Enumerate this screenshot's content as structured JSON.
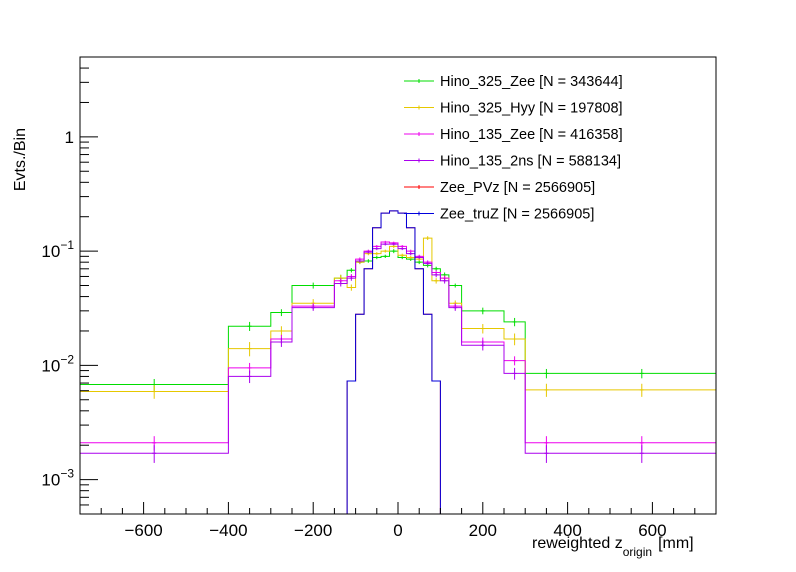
{
  "chart_data": {
    "type": "histogram",
    "title": "",
    "xlabel": "reweighted z",
    "xlabel_sub": "origin",
    "xlabel_unit": "[mm]",
    "ylabel": "Evts./Bin",
    "xlim": [
      -750,
      750
    ],
    "ylim": [
      0.0005,
      5
    ],
    "yscale": "log",
    "grid": false,
    "legend_position": "top-right",
    "x_ticks": [
      -600,
      -400,
      -200,
      0,
      200,
      400,
      600
    ],
    "x_tick_labels": [
      "−600",
      "−400",
      "−200",
      "0",
      "200",
      "400",
      "600"
    ],
    "y_ticks": [
      {
        "value": 0.001,
        "base": "10",
        "exp": "−3"
      },
      {
        "value": 0.01,
        "base": "10",
        "exp": "−2"
      },
      {
        "value": 0.1,
        "base": "10",
        "exp": "−1"
      },
      {
        "value": 1,
        "base": "1",
        "exp": ""
      }
    ],
    "bin_edges": [
      -750,
      -400,
      -300,
      -250,
      -150,
      -120,
      -100,
      -80,
      -60,
      -40,
      -20,
      0,
      20,
      40,
      60,
      80,
      100,
      120,
      150,
      250,
      300,
      400,
      750
    ],
    "series": [
      {
        "name": "Hino_325_Zee [N = 343644]",
        "color": "#00dd00",
        "values": [
          0.0068,
          0.022,
          0.029,
          0.05,
          0.058,
          0.068,
          0.08,
          0.082,
          0.088,
          0.09,
          0.1,
          0.088,
          0.085,
          0.08,
          0.075,
          0.07,
          0.062,
          0.05,
          0.03,
          0.024,
          0.0085,
          0.0085
        ],
        "errors": [
          0.0008,
          0.002,
          0.002,
          0.003,
          0.004,
          0.003,
          0.003,
          0.003,
          0.003,
          0.003,
          0.004,
          0.003,
          0.003,
          0.003,
          0.003,
          0.003,
          0.003,
          0.002,
          0.002,
          0.002,
          0.0008,
          0.0008
        ]
      },
      {
        "name": "Hino_325_Hyy [N = 197808]",
        "color": "#e6c800",
        "values": [
          0.0059,
          0.014,
          0.02,
          0.035,
          0.058,
          0.048,
          0.08,
          0.095,
          0.095,
          0.1,
          0.11,
          0.092,
          0.088,
          0.085,
          0.13,
          0.055,
          0.058,
          0.035,
          0.021,
          0.017,
          0.0061,
          0.0061
        ],
        "errors": [
          0.0008,
          0.002,
          0.002,
          0.003,
          0.004,
          0.003,
          0.003,
          0.003,
          0.003,
          0.003,
          0.004,
          0.003,
          0.003,
          0.003,
          0.005,
          0.003,
          0.003,
          0.002,
          0.002,
          0.002,
          0.0008,
          0.0008
        ]
      },
      {
        "name": "Hino_135_Zee [N = 416358]",
        "color": "#ee00ee",
        "values": [
          0.0021,
          0.0095,
          0.017,
          0.033,
          0.055,
          0.06,
          0.085,
          0.1,
          0.11,
          0.12,
          0.118,
          0.11,
          0.1,
          0.09,
          0.08,
          0.065,
          0.058,
          0.033,
          0.016,
          0.011,
          0.0021,
          0.0021
        ],
        "errors": [
          0.0003,
          0.001,
          0.0015,
          0.002,
          0.003,
          0.003,
          0.003,
          0.003,
          0.003,
          0.003,
          0.003,
          0.003,
          0.003,
          0.003,
          0.003,
          0.003,
          0.003,
          0.002,
          0.0015,
          0.001,
          0.0003,
          0.0003
        ]
      },
      {
        "name": "Hino_135_2ns [N = 588134]",
        "color": "#aa00ee",
        "values": [
          0.0017,
          0.008,
          0.016,
          0.032,
          0.052,
          0.058,
          0.082,
          0.098,
          0.105,
          0.115,
          0.115,
          0.105,
          0.095,
          0.088,
          0.078,
          0.062,
          0.055,
          0.032,
          0.015,
          0.0085,
          0.0017,
          0.0017
        ],
        "errors": [
          0.0003,
          0.001,
          0.0015,
          0.002,
          0.003,
          0.003,
          0.003,
          0.003,
          0.003,
          0.003,
          0.003,
          0.003,
          0.003,
          0.003,
          0.003,
          0.003,
          0.003,
          0.002,
          0.0015,
          0.001,
          0.0003,
          0.0003
        ]
      },
      {
        "name": "Zee_PVz [N = 2566905]",
        "color": "#ff0000",
        "values": [
          0,
          0,
          0,
          0,
          0,
          0.0073,
          0.028,
          0.07,
          0.16,
          0.215,
          0.225,
          0.215,
          0.16,
          0.07,
          0.028,
          0.0073,
          0,
          0,
          0,
          0,
          0,
          0
        ],
        "errors": []
      },
      {
        "name": "Zee_truZ [N = 2566905]",
        "color": "#0000dd",
        "values": [
          0,
          0,
          0,
          0,
          0,
          0.0073,
          0.028,
          0.07,
          0.16,
          0.215,
          0.225,
          0.215,
          0.16,
          0.07,
          0.028,
          0.0073,
          0,
          0,
          0,
          0,
          0,
          0
        ],
        "errors": []
      }
    ]
  }
}
